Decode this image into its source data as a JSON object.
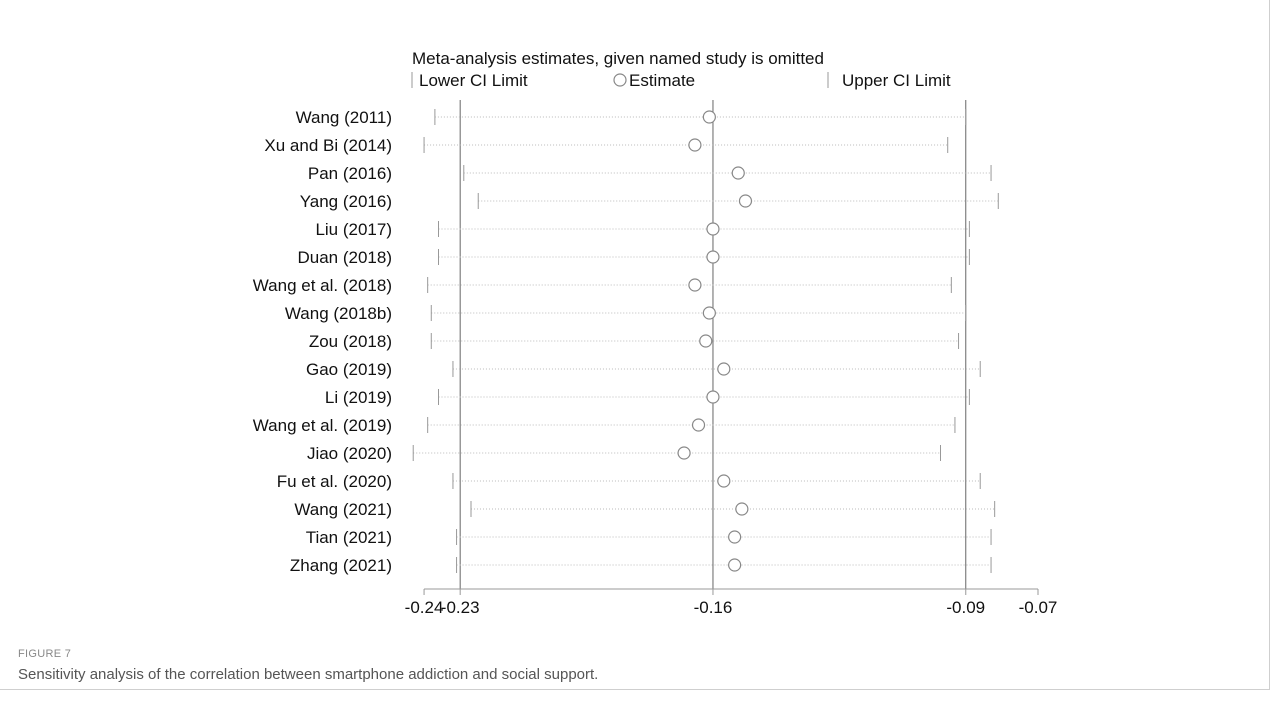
{
  "figure": {
    "label": "FIGURE 7",
    "caption": "Sensitivity analysis of the correlation between smartphone addiction and social support."
  },
  "chart_data": {
    "type": "scatter",
    "title": "Meta-analysis estimates, given named study is omitted",
    "legend": {
      "lower": "Lower CI Limit",
      "estimate": "Estimate",
      "upper": "Upper CI Limit"
    },
    "xlim": [
      -0.24,
      -0.07
    ],
    "x_ticks": [
      -0.24,
      -0.23,
      -0.16,
      -0.09,
      -0.07
    ],
    "x_tick_labels": [
      "-0.24",
      "-0.23",
      "-0.16",
      "-0.09",
      "-0.07"
    ],
    "reference_lines": [
      -0.23,
      -0.16,
      -0.09
    ],
    "studies": [
      {
        "name": "Wang (2011)",
        "lower": -0.237,
        "estimate": -0.161,
        "upper": -0.09
      },
      {
        "name": "Xu and Bi (2014)",
        "lower": -0.24,
        "estimate": -0.165,
        "upper": -0.095
      },
      {
        "name": "Pan (2016)",
        "lower": -0.229,
        "estimate": -0.153,
        "upper": -0.083
      },
      {
        "name": "Yang (2016)",
        "lower": -0.225,
        "estimate": -0.151,
        "upper": -0.081
      },
      {
        "name": "Liu (2017)",
        "lower": -0.236,
        "estimate": -0.16,
        "upper": -0.089
      },
      {
        "name": "Duan (2018)",
        "lower": -0.236,
        "estimate": -0.16,
        "upper": -0.089
      },
      {
        "name": "Wang et al. (2018)",
        "lower": -0.239,
        "estimate": -0.165,
        "upper": -0.094
      },
      {
        "name": "Wang (2018b)",
        "lower": -0.238,
        "estimate": -0.161,
        "upper": -0.09
      },
      {
        "name": "Zou (2018)",
        "lower": -0.238,
        "estimate": -0.162,
        "upper": -0.092
      },
      {
        "name": "Gao (2019)",
        "lower": -0.232,
        "estimate": -0.157,
        "upper": -0.086
      },
      {
        "name": "Li (2019)",
        "lower": -0.236,
        "estimate": -0.16,
        "upper": -0.089
      },
      {
        "name": "Wang et al. (2019)",
        "lower": -0.239,
        "estimate": -0.164,
        "upper": -0.093
      },
      {
        "name": "Jiao (2020)",
        "lower": -0.243,
        "estimate": -0.168,
        "upper": -0.097
      },
      {
        "name": "Fu et al. (2020)",
        "lower": -0.232,
        "estimate": -0.157,
        "upper": -0.086
      },
      {
        "name": "Wang (2021)",
        "lower": -0.227,
        "estimate": -0.152,
        "upper": -0.082
      },
      {
        "name": "Tian (2021)",
        "lower": -0.231,
        "estimate": -0.154,
        "upper": -0.083
      },
      {
        "name": "Zhang (2021)",
        "lower": -0.231,
        "estimate": -0.154,
        "upper": -0.083
      }
    ]
  }
}
